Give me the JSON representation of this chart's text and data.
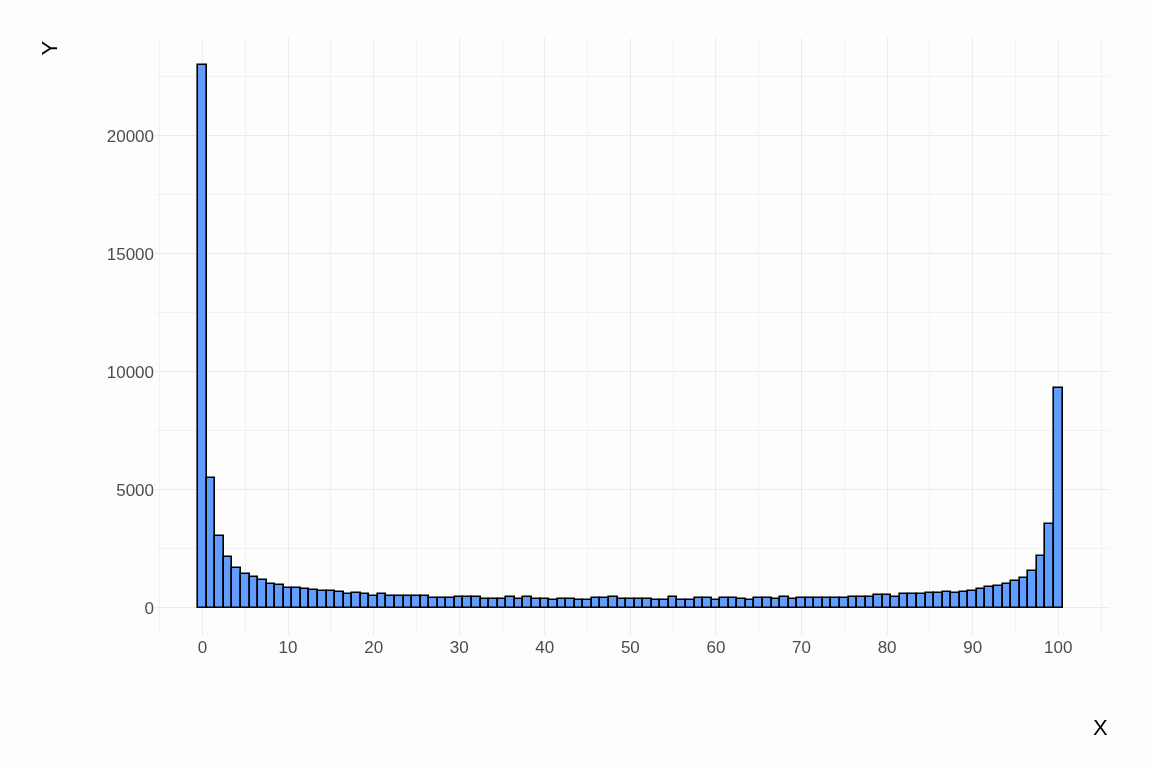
{
  "chart_data": {
    "type": "histogram",
    "xlabel": "X",
    "ylabel": "Y",
    "color": "#619cff",
    "bins": [
      -0.5,
      0.5,
      1.5,
      2.5,
      3.5,
      4.5,
      5.5,
      6.5,
      7.5,
      8.5,
      9.5,
      10.5,
      11.5,
      12.5,
      13.5,
      14.5,
      15.5,
      16.5,
      17.5,
      18.5,
      19.5,
      20.5,
      21.5,
      22.5,
      23.5,
      24.5,
      25.5,
      26.5,
      27.5,
      28.5,
      29.5,
      30.5,
      31.5,
      32.5,
      33.5,
      34.5,
      35.5,
      36.5,
      37.5,
      38.5,
      39.5,
      40.5,
      41.5,
      42.5,
      43.5,
      44.5,
      45.5,
      46.5,
      47.5,
      48.5,
      49.5,
      50.5,
      51.5,
      52.5,
      53.5,
      54.5,
      55.5,
      56.5,
      57.5,
      58.5,
      59.5,
      60.5,
      61.5,
      62.5,
      63.5,
      64.5,
      65.5,
      66.5,
      67.5,
      68.5,
      69.5,
      70.5,
      71.5,
      72.5,
      73.5,
      74.5,
      75.5,
      76.5,
      77.5,
      78.5,
      79.5,
      80.5,
      81.5,
      82.5,
      83.5,
      84.5,
      85.5,
      86.5,
      87.5,
      88.5,
      89.5,
      90.5,
      91.5,
      92.5,
      93.5,
      94.5,
      95.5,
      96.5,
      97.5,
      98.5,
      99.5,
      100.5
    ],
    "values": [
      23000,
      5500,
      3050,
      2170,
      1700,
      1450,
      1320,
      1180,
      1030,
      980,
      840,
      840,
      790,
      740,
      700,
      700,
      660,
      570,
      620,
      570,
      510,
      570,
      510,
      510,
      510,
      510,
      510,
      430,
      430,
      430,
      480,
      480,
      440,
      370,
      370,
      370,
      440,
      370,
      440,
      370,
      370,
      330,
      370,
      370,
      330,
      330,
      400,
      400,
      440,
      370,
      370,
      370,
      370,
      330,
      330,
      440,
      330,
      330,
      400,
      400,
      330,
      400,
      400,
      370,
      330,
      400,
      400,
      370,
      440,
      370,
      430,
      430,
      430,
      430,
      430,
      430,
      480,
      480,
      480,
      530,
      530,
      480,
      580,
      580,
      580,
      620,
      620,
      660,
      620,
      660,
      700,
      790,
      870,
      930,
      1000,
      1130,
      1250,
      1580,
      2180,
      3550,
      9300
    ],
    "xlim": [
      -5.55,
      106.05
    ],
    "xticks": [
      0,
      10,
      20,
      30,
      40,
      50,
      60,
      70,
      80,
      90,
      100
    ],
    "ylim": [
      -1150,
      24150
    ],
    "yticks": [
      0,
      5000,
      10000,
      15000,
      20000
    ],
    "grid": true,
    "legend": false
  }
}
